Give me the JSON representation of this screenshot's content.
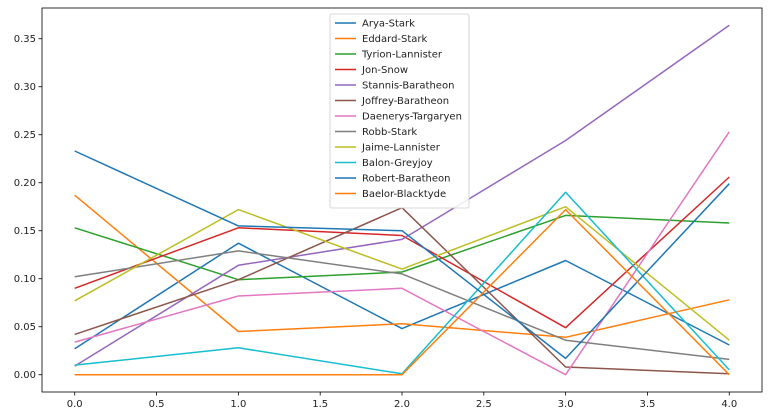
{
  "chart_data": {
    "type": "line",
    "title": "",
    "xlabel": "",
    "ylabel": "",
    "xlim": [
      -0.2,
      4.2
    ],
    "ylim": [
      -0.018,
      0.382
    ],
    "x": [
      0,
      1,
      2,
      3,
      4
    ],
    "xticks": [
      "0.0",
      "0.5",
      "1.0",
      "1.5",
      "2.0",
      "2.5",
      "3.0",
      "3.5",
      "4.0"
    ],
    "xtick_values": [
      0,
      0.5,
      1,
      1.5,
      2,
      2.5,
      3,
      3.5,
      4
    ],
    "yticks": [
      "0.00",
      "0.05",
      "0.10",
      "0.15",
      "0.20",
      "0.25",
      "0.30",
      "0.35"
    ],
    "ytick_values": [
      0,
      0.05,
      0.1,
      0.15,
      0.2,
      0.25,
      0.3,
      0.35
    ],
    "grid": false,
    "legend_position": "top-center",
    "series": [
      {
        "name": "Arya-Stark",
        "color": "#1f77b4",
        "values": [
          0.027,
          0.137,
          0.048,
          0.119,
          0.031
        ]
      },
      {
        "name": "Eddard-Stark",
        "color": "#ff7f0e",
        "values": [
          0.187,
          0.045,
          0.053,
          0.039,
          0.078
        ]
      },
      {
        "name": "Tyrion-Lannister",
        "color": "#2ca02c",
        "values": [
          0.153,
          0.099,
          0.107,
          0.166,
          0.158
        ]
      },
      {
        "name": "Jon-Snow",
        "color": "#d62728",
        "values": [
          0.09,
          0.153,
          0.145,
          0.049,
          0.206
        ]
      },
      {
        "name": "Stannis-Baratheon",
        "color": "#9467bd",
        "values": [
          0.009,
          0.114,
          0.141,
          0.244,
          0.364
        ]
      },
      {
        "name": "Joffrey-Baratheon",
        "color": "#8c564b",
        "values": [
          0.042,
          0.099,
          0.174,
          0.008,
          0.001
        ]
      },
      {
        "name": "Daenerys-Targaryen",
        "color": "#e377c2",
        "values": [
          0.034,
          0.082,
          0.09,
          0.0,
          0.253
        ]
      },
      {
        "name": "Robb-Stark",
        "color": "#7f7f7f",
        "values": [
          0.102,
          0.129,
          0.105,
          0.036,
          0.016
        ]
      },
      {
        "name": "Jaime-Lannister",
        "color": "#bcbd22",
        "values": [
          0.077,
          0.172,
          0.11,
          0.175,
          0.036
        ]
      },
      {
        "name": "Balon-Greyjoy",
        "color": "#17becf",
        "values": [
          0.01,
          0.028,
          0.001,
          0.19,
          0.005
        ]
      },
      {
        "name": "Robert-Baratheon",
        "color": "#1f77b4",
        "values": [
          0.233,
          0.155,
          0.15,
          0.017,
          0.199
        ]
      },
      {
        "name": "Baelor-Blacktyde",
        "color": "#ff7f0e",
        "values": [
          0.0,
          0.0,
          0.0,
          0.172,
          0.0
        ]
      }
    ]
  }
}
